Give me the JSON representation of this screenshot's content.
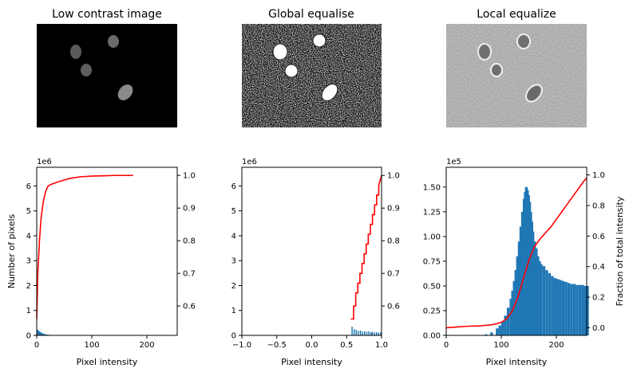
{
  "panels": [
    {
      "title": "Low contrast image",
      "style": "low"
    },
    {
      "title": "Global equalise",
      "style": "global"
    },
    {
      "title": "Local equalize",
      "style": "local"
    }
  ],
  "chart_data": [
    {
      "type": "bar",
      "xlabel": "Pixel intensity",
      "ylabel": "Number of pixels",
      "y2label": "",
      "xlim": [
        0,
        255
      ],
      "xticks": [
        0,
        100,
        200
      ],
      "ylim": [
        0,
        6.75
      ],
      "yticks": [
        0,
        1,
        2,
        3,
        4,
        5,
        6
      ],
      "yticklabels": [
        "0",
        "1",
        "2",
        "3",
        "4",
        "5",
        "6"
      ],
      "y_scale_label": "1e6",
      "y2lim": [
        0.51,
        1.025
      ],
      "y2ticks": [
        0.6,
        0.7,
        0.8,
        0.9,
        1.0
      ],
      "y2ticklabels": [
        "0.6",
        "0.7",
        "0.8",
        "0.9",
        "1.0"
      ],
      "hist_color": "#1f77b4",
      "cdf_color": "#ff0000",
      "hist_x": [
        0,
        1,
        2,
        3,
        4,
        5,
        6,
        7,
        8,
        9,
        10,
        11,
        12,
        13,
        14,
        15,
        16,
        17,
        18,
        19,
        20,
        21,
        22,
        23,
        24,
        25,
        26,
        27,
        28,
        29,
        30,
        31,
        32,
        33,
        34,
        35,
        36,
        37,
        38,
        39,
        40
      ],
      "hist_y": [
        0.24,
        0.21,
        0.18,
        0.2,
        0.16,
        0.15,
        0.13,
        0.12,
        0.1,
        0.09,
        0.08,
        0.07,
        0.06,
        0.06,
        0.05,
        0.04,
        0.04,
        0.03,
        0.03,
        0.03,
        0.02,
        0.02,
        0.02,
        0.02,
        0.015,
        0.015,
        0.01,
        0.01,
        0.01,
        0.01,
        0.008,
        0.008,
        0.006,
        0.006,
        0.005,
        0.005,
        0.004,
        0.004,
        0.003,
        0.003,
        0.003
      ],
      "cdf_x": [
        0,
        2,
        5,
        8,
        12,
        16,
        20,
        25,
        30,
        40,
        50,
        60,
        80,
        100,
        120,
        140,
        160,
        175
      ],
      "cdf_y": [
        0.56,
        0.7,
        0.8,
        0.87,
        0.92,
        0.95,
        0.966,
        0.972,
        0.975,
        0.981,
        0.986,
        0.991,
        0.996,
        0.998,
        0.999,
        1.0,
        1.0,
        1.0
      ]
    },
    {
      "type": "bar",
      "xlabel": "Pixel intensity",
      "ylabel": "",
      "y2label": "",
      "xlim": [
        -1,
        1
      ],
      "xticks": [
        -1.0,
        -0.5,
        0.0,
        0.5,
        1.0
      ],
      "xticklabels": [
        "−1.0",
        "−0.5",
        "0.0",
        "0.5",
        "1.0"
      ],
      "ylim": [
        0,
        6.75
      ],
      "yticks": [
        0,
        1,
        2,
        3,
        4,
        5,
        6
      ],
      "yticklabels": [
        "0",
        "1",
        "2",
        "3",
        "4",
        "5",
        "6"
      ],
      "y_scale_label": "1e6",
      "y2lim": [
        0.51,
        1.025
      ],
      "y2ticks": [
        0.6,
        0.7,
        0.8,
        0.9,
        1.0
      ],
      "y2ticklabels": [
        "0.6",
        "0.7",
        "0.8",
        "0.9",
        "1.0"
      ],
      "hist_color": "#1f77b4",
      "cdf_color": "#ff0000",
      "hist_x": [
        0.57,
        0.6,
        0.63,
        0.66,
        0.69,
        0.72,
        0.75,
        0.78,
        0.81,
        0.84,
        0.86,
        0.89,
        0.92,
        0.95,
        0.98
      ],
      "hist_y": [
        0.35,
        0.25,
        0.22,
        0.18,
        0.2,
        0.15,
        0.17,
        0.14,
        0.16,
        0.13,
        0.14,
        0.12,
        0.13,
        0.11,
        0.12
      ],
      "cdf_x": [
        0.56,
        0.6,
        0.6,
        0.63,
        0.63,
        0.66,
        0.66,
        0.69,
        0.69,
        0.72,
        0.72,
        0.75,
        0.75,
        0.78,
        0.78,
        0.81,
        0.81,
        0.84,
        0.84,
        0.87,
        0.87,
        0.9,
        0.9,
        0.93,
        0.93,
        0.96,
        0.96,
        1.0
      ],
      "cdf_y": [
        0.56,
        0.56,
        0.6,
        0.6,
        0.64,
        0.64,
        0.67,
        0.67,
        0.7,
        0.7,
        0.73,
        0.73,
        0.76,
        0.76,
        0.79,
        0.79,
        0.82,
        0.82,
        0.85,
        0.85,
        0.88,
        0.88,
        0.91,
        0.91,
        0.94,
        0.94,
        0.97,
        1.0
      ]
    },
    {
      "type": "bar",
      "xlabel": "Pixel intensity",
      "ylabel": "",
      "y2label": "Fraction of total intensity",
      "xlim": [
        0,
        255
      ],
      "xticks": [
        0,
        100,
        200
      ],
      "ylim": [
        0,
        1.7
      ],
      "yticks": [
        0,
        0.25,
        0.5,
        0.75,
        1.0,
        1.25,
        1.5
      ],
      "yticklabels": [
        "0.00",
        "0.25",
        "0.50",
        "0.75",
        "1.00",
        "1.25",
        "1.50"
      ],
      "y_scale_label": "1e5",
      "y2lim": [
        -0.05,
        1.05
      ],
      "y2ticks": [
        0,
        0.2,
        0.4,
        0.6,
        0.8,
        1.0
      ],
      "y2ticklabels": [
        "0.0",
        "0.2",
        "0.4",
        "0.6",
        "0.8",
        "1.0"
      ],
      "hist_color": "#1f77b4",
      "cdf_color": "#ff0000",
      "hist_x": [
        70,
        80,
        90,
        95,
        100,
        105,
        110,
        115,
        118,
        121,
        124,
        127,
        130,
        133,
        136,
        139,
        141,
        143,
        145,
        147,
        149,
        151,
        153,
        155,
        158,
        161,
        164,
        167,
        170,
        175,
        180,
        185,
        190,
        195,
        200,
        205,
        210,
        215,
        220,
        225,
        230,
        235,
        240,
        245,
        250,
        254
      ],
      "hist_y": [
        0.01,
        0.03,
        0.07,
        0.1,
        0.14,
        0.2,
        0.28,
        0.37,
        0.45,
        0.55,
        0.66,
        0.8,
        0.95,
        1.1,
        1.25,
        1.38,
        1.45,
        1.5,
        1.47,
        1.42,
        1.35,
        1.25,
        1.15,
        1.05,
        0.95,
        0.88,
        0.8,
        0.75,
        0.72,
        0.7,
        0.66,
        0.63,
        0.6,
        0.58,
        0.57,
        0.56,
        0.55,
        0.54,
        0.53,
        0.52,
        0.52,
        0.51,
        0.51,
        0.51,
        0.5,
        0.5
      ],
      "cdf_x": [
        0,
        20,
        40,
        60,
        80,
        90,
        100,
        110,
        120,
        130,
        140,
        150,
        160,
        170,
        180,
        190,
        200,
        210,
        220,
        230,
        240,
        250,
        255
      ],
      "cdf_y": [
        0.0,
        0.005,
        0.01,
        0.012,
        0.018,
        0.025,
        0.035,
        0.06,
        0.11,
        0.2,
        0.32,
        0.44,
        0.53,
        0.58,
        0.62,
        0.66,
        0.71,
        0.76,
        0.81,
        0.86,
        0.91,
        0.96,
        0.98
      ]
    }
  ]
}
